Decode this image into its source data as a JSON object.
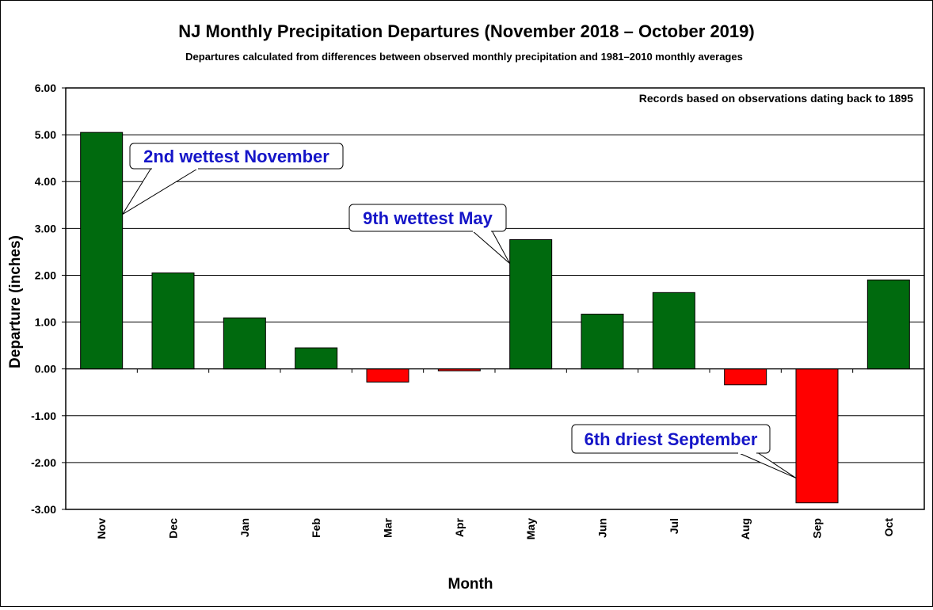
{
  "chart_data": {
    "type": "bar",
    "title": "NJ Monthly  Precipitation Departures (November 2018 – October 2019)",
    "subtitle": "Departures calculated from differences between observed monthly precipitation and 1981–2010 monthly  averages",
    "note": "Records based on observations dating back to 1895",
    "xlabel": "Month",
    "ylabel": "Departure (inches)",
    "ylim": [
      -3,
      6
    ],
    "yticks": [
      6,
      5,
      4,
      3,
      2,
      1,
      0,
      -1,
      -2,
      -3
    ],
    "ytick_labels": [
      "6.00",
      "5.00",
      "4.00",
      "3.00",
      "2.00",
      "1.00",
      "0.00",
      "-1.00",
      "-2.00",
      "-3.00"
    ],
    "grid": true,
    "categories": [
      "Nov",
      "Dec",
      "Jan",
      "Feb",
      "Mar",
      "Apr",
      "May",
      "Jun",
      "Jul",
      "Aug",
      "Sep",
      "Oct"
    ],
    "values": [
      5.05,
      2.05,
      1.09,
      0.45,
      -0.28,
      -0.04,
      2.76,
      1.17,
      1.63,
      -0.34,
      -2.86,
      1.9
    ],
    "colors": {
      "positive": "#006a0e",
      "negative": "#ff0000"
    },
    "annotations": [
      {
        "text": "2nd wettest November",
        "category": "Nov"
      },
      {
        "text": "9th wettest May",
        "category": "May"
      },
      {
        "text": "6th driest September",
        "category": "Sep"
      }
    ]
  }
}
